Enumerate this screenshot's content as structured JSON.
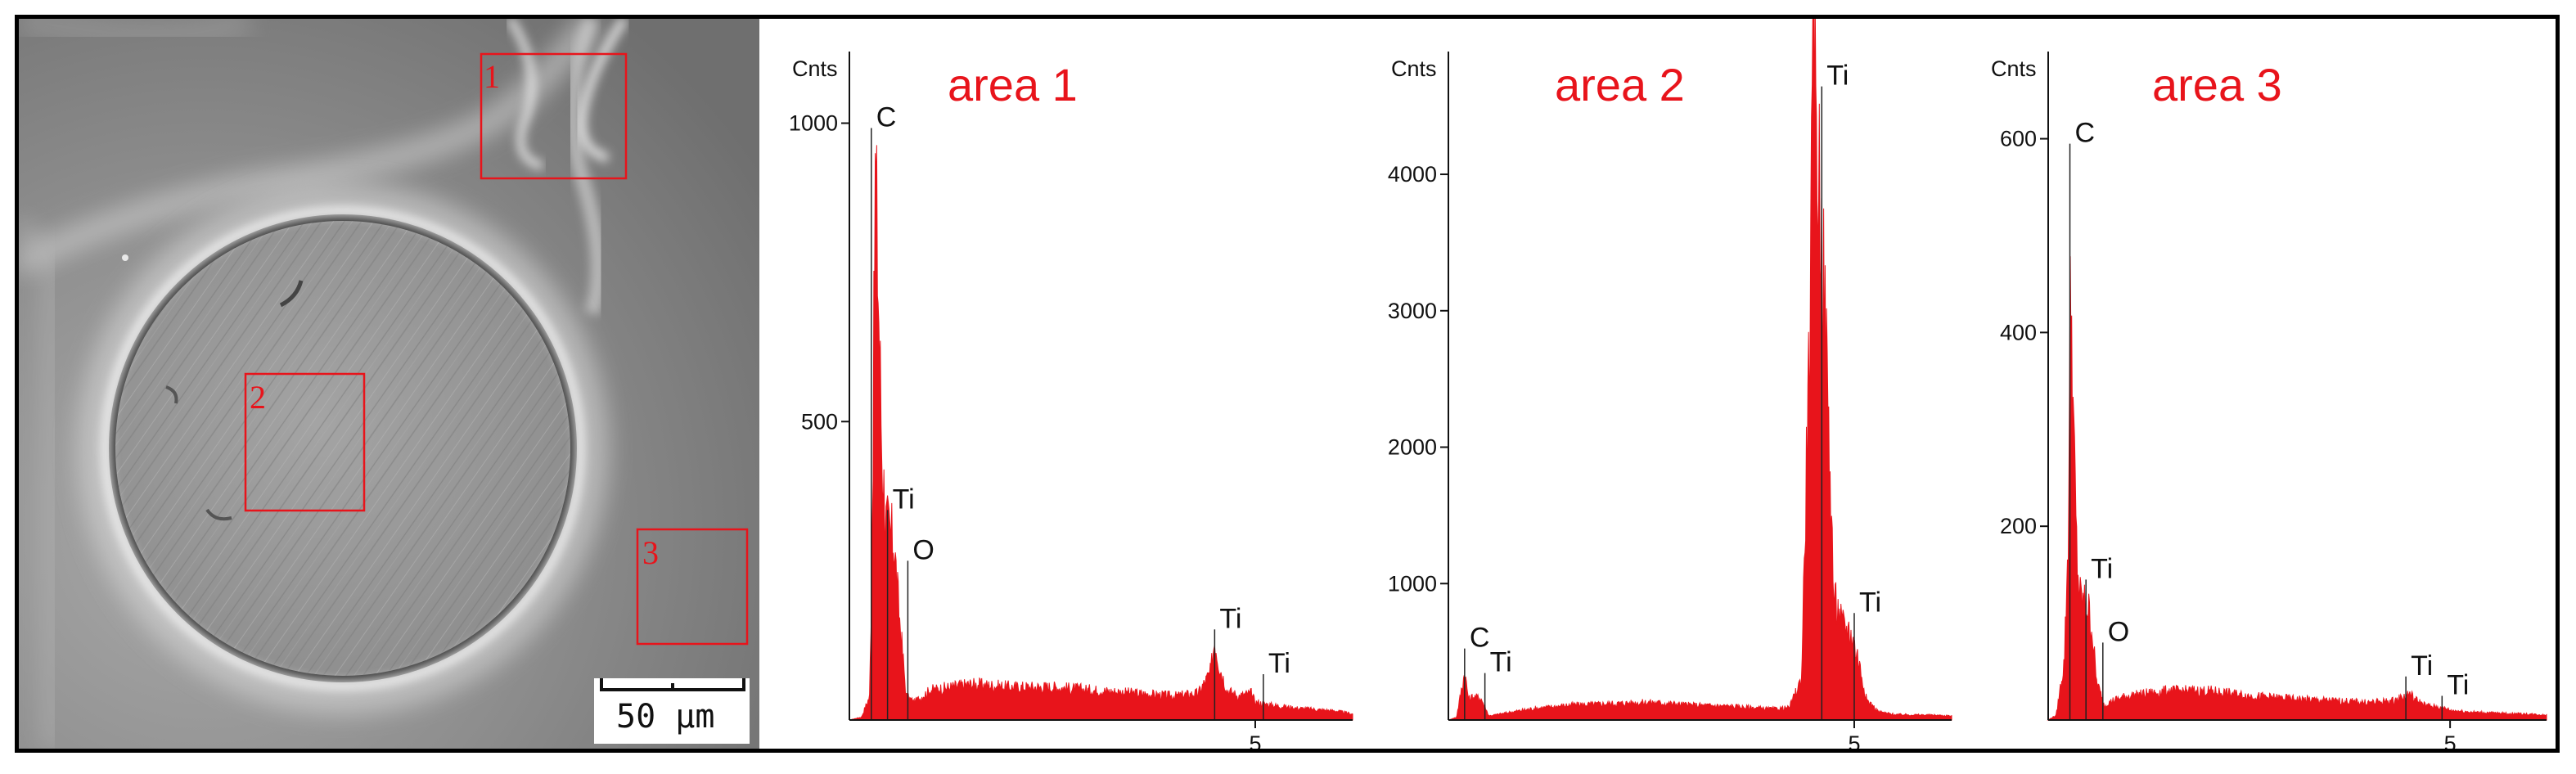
{
  "sem_image": {
    "area_labels": [
      "1",
      "2",
      "3"
    ],
    "scale_bar_label": "50 µm",
    "colors": {
      "box": "#e8141b",
      "background": "#8a8a8a",
      "disk": "#9c9c9c"
    }
  },
  "chart_data": [
    {
      "type": "area",
      "title": "area 1",
      "ylabel": "Cnts",
      "xlim": [
        0,
        6.2
      ],
      "ylim": [
        0,
        1120
      ],
      "yticks": [
        500,
        1000
      ],
      "xticks": [
        5
      ],
      "x": [
        0,
        0.15,
        0.25,
        0.28,
        0.32,
        0.36,
        0.4,
        0.45,
        0.5,
        0.55,
        0.6,
        0.7,
        0.8,
        1.0,
        1.5,
        2.0,
        2.5,
        3.0,
        3.5,
        4.0,
        4.3,
        4.45,
        4.5,
        4.55,
        4.65,
        4.8,
        4.95,
        5.0,
        5.2,
        5.5,
        6.0,
        6.2
      ],
      "y": [
        0,
        5,
        40,
        300,
        920,
        700,
        450,
        330,
        310,
        300,
        200,
        40,
        30,
        50,
        60,
        55,
        55,
        50,
        45,
        40,
        45,
        80,
        135,
        95,
        50,
        40,
        45,
        30,
        25,
        20,
        15,
        10
      ],
      "peak_labels": [
        {
          "text": "C",
          "x": 0.27,
          "y": 1000
        },
        {
          "text": "Ti",
          "x": 0.47,
          "y": 360
        },
        {
          "text": "O",
          "x": 0.72,
          "y": 275
        },
        {
          "text": "Ti",
          "x": 4.5,
          "y": 160
        },
        {
          "text": "Ti",
          "x": 5.1,
          "y": 85
        }
      ],
      "color": "#e8141b"
    },
    {
      "type": "area",
      "title": "area 2",
      "ylabel": "Cnts",
      "xlim": [
        0,
        6.2
      ],
      "ylim": [
        0,
        4900
      ],
      "yticks": [
        1000,
        2000,
        3000,
        4000
      ],
      "xticks": [
        5
      ],
      "x": [
        0,
        0.1,
        0.2,
        0.25,
        0.3,
        0.4,
        0.5,
        0.6,
        0.8,
        1.0,
        1.5,
        2.0,
        2.5,
        3.0,
        3.5,
        4.0,
        4.2,
        4.35,
        4.45,
        4.5,
        4.55,
        4.65,
        4.75,
        4.85,
        4.95,
        5.05,
        5.15,
        5.3,
        5.5,
        6.0,
        6.2
      ],
      "y": [
        0,
        20,
        350,
        150,
        170,
        160,
        30,
        40,
        60,
        80,
        110,
        120,
        130,
        110,
        100,
        80,
        90,
        300,
        2800,
        4850,
        4200,
        2800,
        900,
        700,
        650,
        450,
        150,
        60,
        40,
        35,
        30
      ],
      "peak_labels": [
        {
          "text": "Ti",
          "x": 4.6,
          "y": 4680
        },
        {
          "text": "C",
          "x": 0.2,
          "y": 560
        },
        {
          "text": "Ti",
          "x": 0.45,
          "y": 380
        },
        {
          "text": "Ti",
          "x": 5.0,
          "y": 820
        }
      ],
      "color": "#e8141b"
    },
    {
      "type": "area",
      "title": "area 3",
      "ylabel": "Cnts",
      "xlim": [
        0,
        6.2
      ],
      "ylim": [
        0,
        690
      ],
      "yticks": [
        200,
        400,
        600
      ],
      "xticks": [
        5
      ],
      "x": [
        0,
        0.1,
        0.2,
        0.25,
        0.28,
        0.32,
        0.36,
        0.4,
        0.45,
        0.5,
        0.55,
        0.6,
        0.7,
        0.8,
        1.0,
        1.5,
        2.0,
        2.5,
        3.0,
        3.5,
        4.0,
        4.3,
        4.45,
        4.5,
        4.55,
        4.7,
        4.95,
        5.0,
        5.3,
        5.6,
        6.0,
        6.2
      ],
      "y": [
        0,
        5,
        60,
        190,
        460,
        280,
        160,
        125,
        120,
        115,
        90,
        40,
        15,
        20,
        25,
        30,
        30,
        25,
        22,
        20,
        18,
        20,
        25,
        28,
        22,
        15,
        12,
        10,
        8,
        7,
        6,
        5
      ],
      "peak_labels": [
        {
          "text": "C",
          "x": 0.27,
          "y": 600
        },
        {
          "text": "Ti",
          "x": 0.47,
          "y": 150
        },
        {
          "text": "O",
          "x": 0.68,
          "y": 85
        },
        {
          "text": "Ti",
          "x": 4.45,
          "y": 50
        },
        {
          "text": "Ti",
          "x": 4.9,
          "y": 30
        }
      ],
      "color": "#e8141b"
    }
  ]
}
